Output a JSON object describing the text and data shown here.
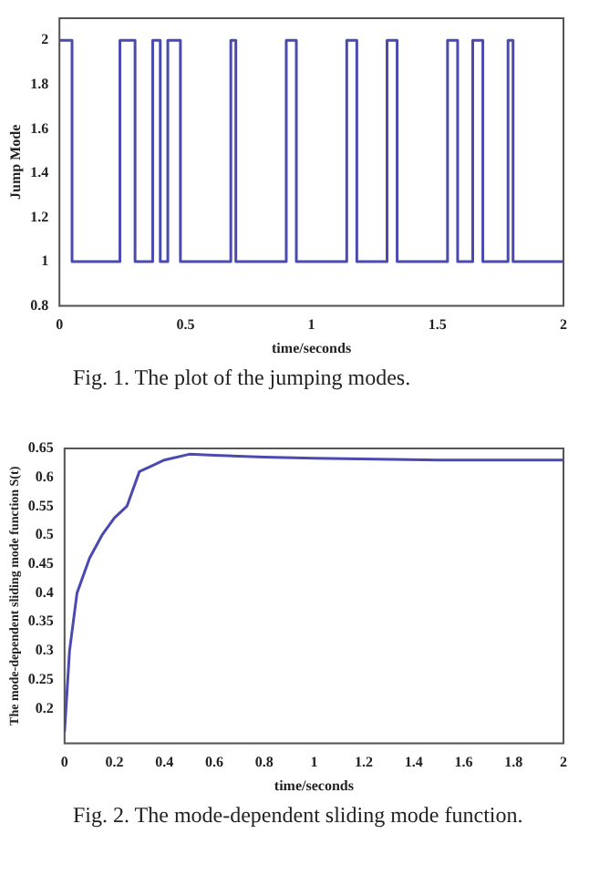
{
  "chart_data": [
    {
      "type": "step",
      "xlabel": "time/seconds",
      "ylabel": "Jump Mode",
      "color": "#4a4ab0",
      "x": [
        0,
        0.05,
        0.24,
        0.3,
        0.37,
        0.4,
        0.43,
        0.48,
        0.68,
        0.7,
        0.9,
        0.94,
        1.14,
        1.18,
        1.3,
        1.34,
        1.54,
        1.58,
        1.64,
        1.68,
        1.78,
        1.8,
        2
      ],
      "values": [
        2,
        1,
        2,
        1,
        2,
        1,
        2,
        1,
        2,
        1,
        2,
        1,
        2,
        1,
        2,
        1,
        2,
        1,
        2,
        1,
        2,
        1,
        1
      ],
      "xlim": [
        0,
        2
      ],
      "xticks": [
        0,
        0.5,
        1,
        1.5,
        2
      ],
      "ylim": [
        0.8,
        2.1
      ],
      "yticks": [
        0.8,
        1,
        1.2,
        1.4,
        1.6,
        1.8,
        2
      ],
      "grid": false,
      "annotations": [
        "Fig. 1. The plot of the jumping modes."
      ]
    },
    {
      "type": "line",
      "xlabel": "time/seconds",
      "ylabel": "The mode-dependent sliding mode function S(t)",
      "color": "#4a4ab0",
      "x": [
        0,
        0.02,
        0.05,
        0.1,
        0.15,
        0.2,
        0.25,
        0.3,
        0.35,
        0.4,
        0.5,
        0.6,
        0.8,
        1,
        1.5,
        2
      ],
      "values": [
        0.16,
        0.3,
        0.4,
        0.46,
        0.5,
        0.53,
        0.55,
        0.61,
        0.62,
        0.63,
        0.64,
        0.638,
        0.635,
        0.633,
        0.63,
        0.63
      ],
      "xlim": [
        0,
        2
      ],
      "xticks": [
        0,
        0.2,
        0.4,
        0.6,
        0.8,
        1,
        1.2,
        1.4,
        1.6,
        1.8,
        2
      ],
      "ylim": [
        0.14,
        0.65
      ],
      "yticks": [
        0.2,
        0.25,
        0.3,
        0.35,
        0.4,
        0.45,
        0.5,
        0.55,
        0.6,
        0.65
      ],
      "grid": false,
      "annotations": [
        "Fig. 2. The mode-dependent sliding mode function."
      ]
    }
  ]
}
